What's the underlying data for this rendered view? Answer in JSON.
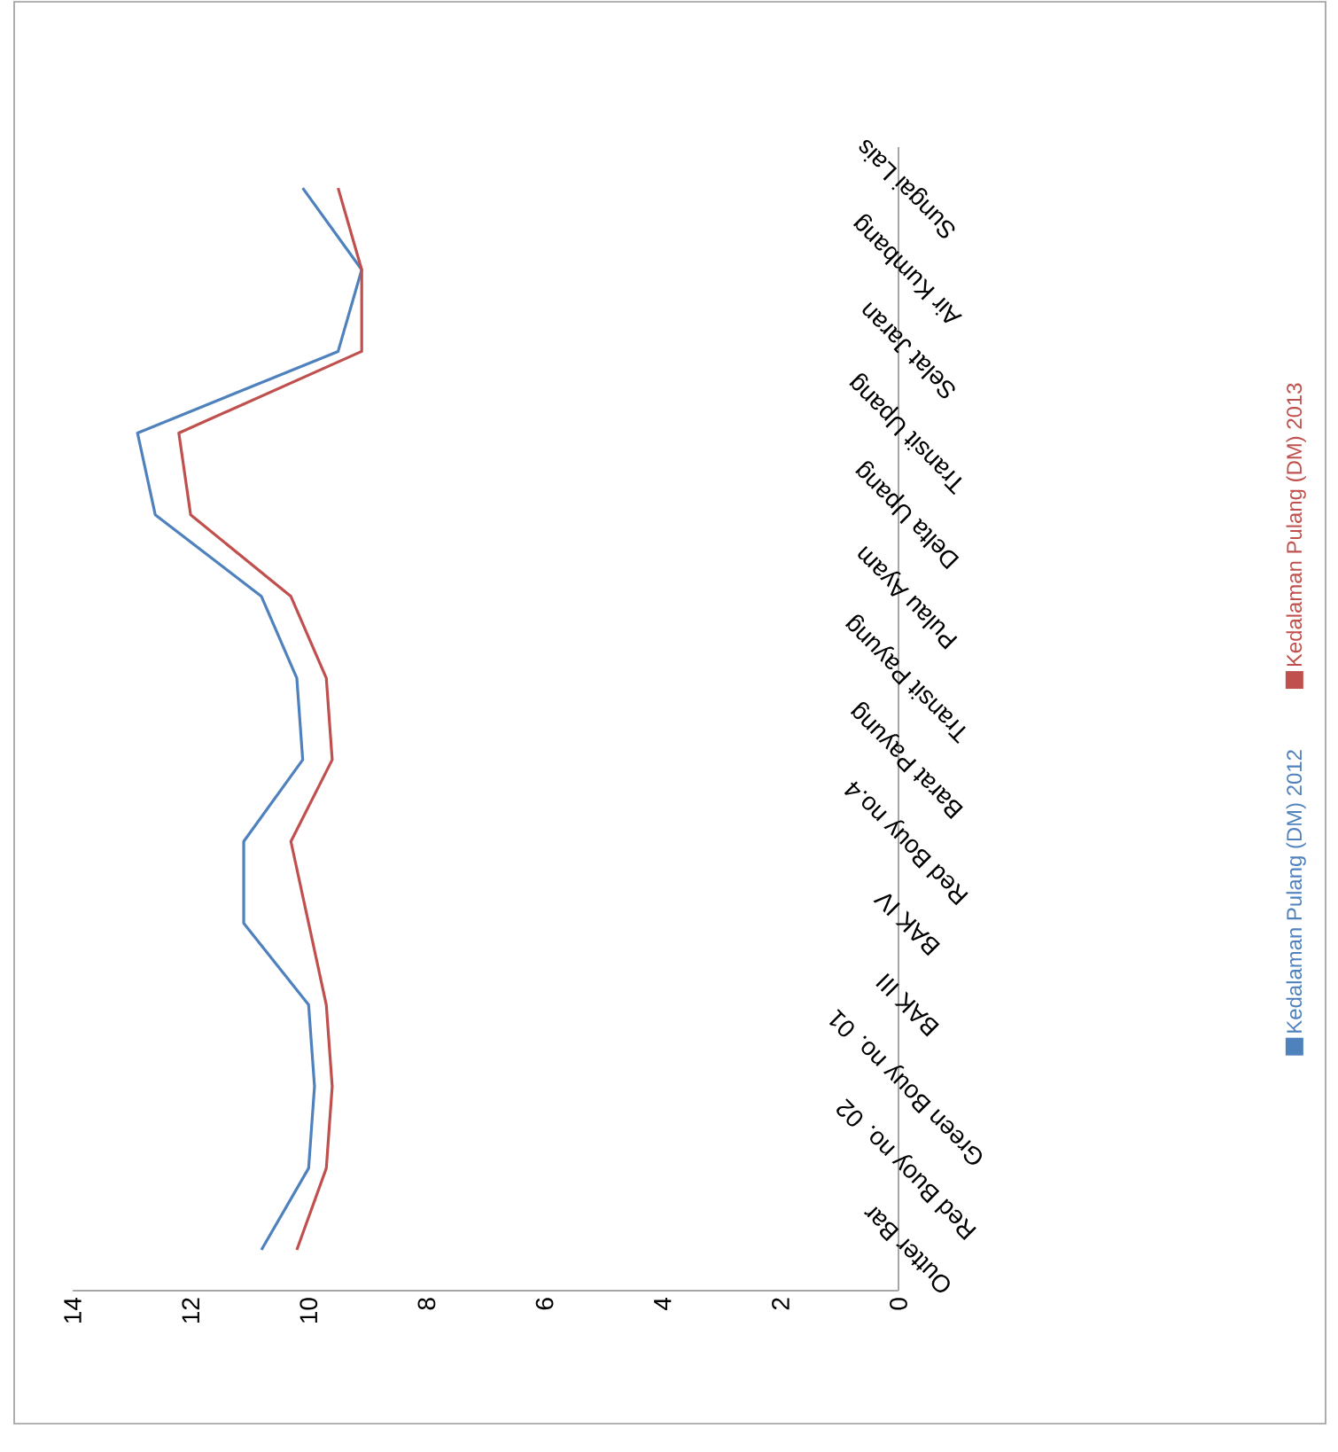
{
  "chart_data": {
    "type": "line",
    "orientation": "horizontal",
    "categories": [
      "Sungai Lais",
      "Air Kumbang",
      "Selat Jaran",
      "Transit Upang",
      "Delta Upang",
      "Pulau Ayam",
      "Transit Payung",
      "Barat Payung",
      "Red Bouy no.4",
      "BAK IV",
      "BAK III",
      "Green Bouy no. 01",
      "Red Buoy no. 02",
      "Outter Bar"
    ],
    "series": [
      {
        "name": "Kedalaman Pulang (DM) 2012",
        "color": "#4f81bd",
        "values": [
          10.1,
          9.1,
          9.5,
          12.9,
          12.6,
          10.8,
          10.2,
          10.1,
          11.1,
          11.1,
          10.0,
          9.9,
          10.0,
          10.8
        ]
      },
      {
        "name": "Kedalaman Pulang (DM) 2013",
        "color": "#c0504d",
        "values": [
          9.5,
          9.1,
          9.1,
          12.2,
          12.0,
          10.3,
          9.7,
          9.6,
          10.3,
          10.0,
          9.7,
          9.6,
          9.7,
          10.2
        ]
      }
    ],
    "xlim": [
      14,
      0
    ],
    "xticks": [
      14,
      12,
      10,
      8,
      6,
      4,
      2,
      0
    ],
    "legend": "right"
  }
}
